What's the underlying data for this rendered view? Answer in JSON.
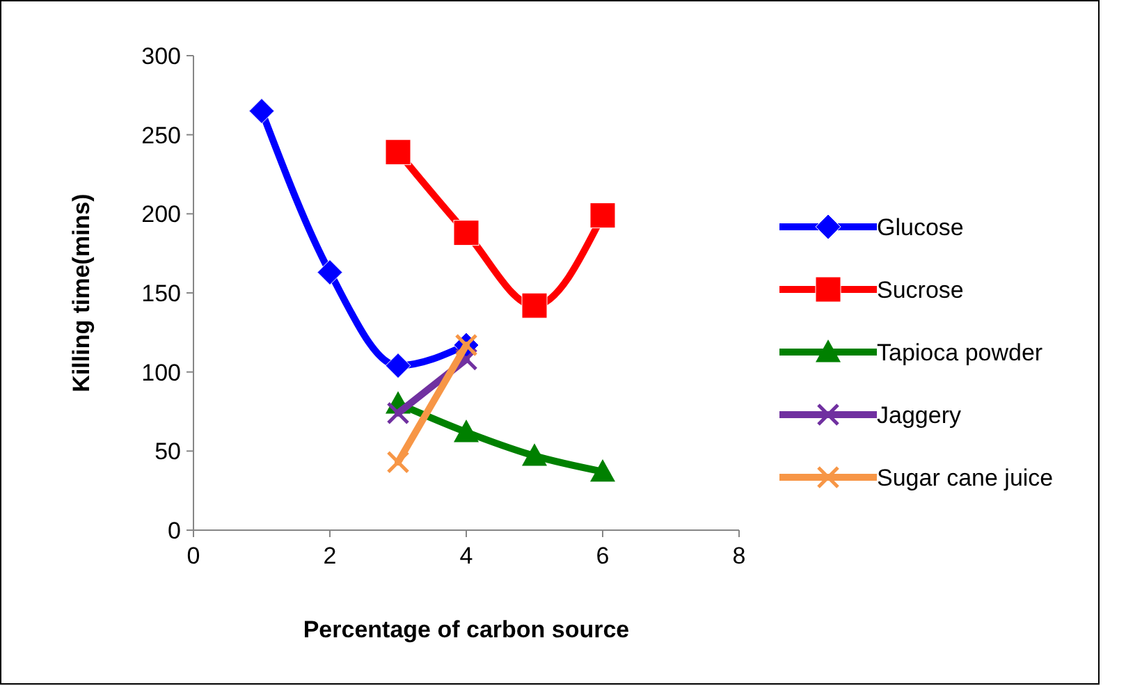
{
  "chart_data": {
    "type": "line",
    "xlabel": "Percentage of carbon source",
    "ylabel": "Killing time(mins)",
    "xlim": [
      0,
      8
    ],
    "xticks": [
      0,
      2,
      4,
      6,
      8
    ],
    "ylim": [
      0,
      300
    ],
    "yticks": [
      0,
      50,
      100,
      150,
      200,
      250,
      300
    ],
    "grid": false,
    "legend": "right",
    "line_style": "solid",
    "series": [
      {
        "name": "Glucose",
        "color": "#0000ff",
        "marker": "diamond",
        "x": [
          1,
          2,
          3,
          4
        ],
        "values": [
          265,
          163,
          104,
          117
        ]
      },
      {
        "name": "Sucrose",
        "color": "#ff0000",
        "marker": "square",
        "x": [
          3,
          4,
          5,
          6
        ],
        "values": [
          239,
          188,
          142,
          199
        ]
      },
      {
        "name": "Tapioca powder",
        "color": "#008000",
        "marker": "triangle",
        "x": [
          3,
          4,
          5,
          6
        ],
        "values": [
          80,
          62,
          47,
          37
        ]
      },
      {
        "name": "Jaggery",
        "color": "#7030a0",
        "marker": "cross",
        "x": [
          3,
          4
        ],
        "values": [
          74,
          108
        ]
      },
      {
        "name": "Sugar cane juice",
        "color": "#f79646",
        "marker": "cross",
        "x": [
          3,
          4
        ],
        "values": [
          43,
          117
        ]
      }
    ]
  }
}
